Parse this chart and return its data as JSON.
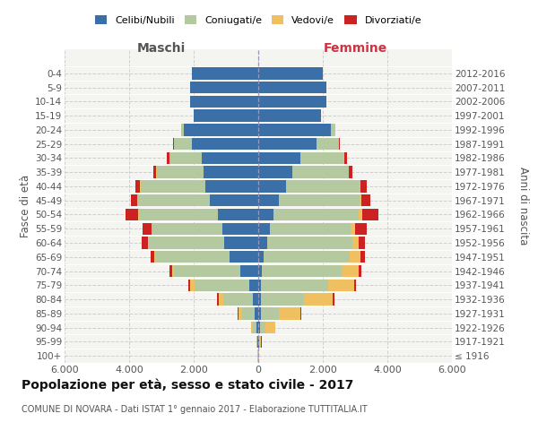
{
  "age_groups": [
    "100+",
    "95-99",
    "90-94",
    "85-89",
    "80-84",
    "75-79",
    "70-74",
    "65-69",
    "60-64",
    "55-59",
    "50-54",
    "45-49",
    "40-44",
    "35-39",
    "30-34",
    "25-29",
    "20-24",
    "15-19",
    "10-14",
    "5-9",
    "0-4"
  ],
  "birth_years": [
    "≤ 1916",
    "1917-1921",
    "1922-1926",
    "1927-1931",
    "1932-1936",
    "1937-1941",
    "1942-1946",
    "1947-1951",
    "1952-1956",
    "1957-1961",
    "1962-1966",
    "1967-1971",
    "1972-1976",
    "1977-1981",
    "1982-1986",
    "1987-1991",
    "1992-1996",
    "1997-2001",
    "2002-2006",
    "2007-2011",
    "2012-2016"
  ],
  "maschi": {
    "celibi": [
      10,
      25,
      60,
      120,
      180,
      280,
      550,
      900,
      1050,
      1100,
      1250,
      1500,
      1650,
      1700,
      1750,
      2050,
      2300,
      2000,
      2100,
      2100,
      2050
    ],
    "coniugati": [
      3,
      25,
      110,
      380,
      900,
      1700,
      2050,
      2300,
      2350,
      2200,
      2450,
      2250,
      2000,
      1450,
      1000,
      550,
      80,
      0,
      0,
      0,
      0
    ],
    "vedovi": [
      2,
      10,
      50,
      110,
      140,
      120,
      75,
      35,
      20,
      15,
      10,
      5,
      5,
      5,
      5,
      5,
      5,
      0,
      0,
      0,
      0
    ],
    "divorziati": [
      2,
      5,
      10,
      20,
      55,
      75,
      75,
      100,
      200,
      270,
      410,
      195,
      145,
      95,
      75,
      25,
      8,
      0,
      0,
      0,
      0
    ]
  },
  "femmine": {
    "nubili": [
      8,
      20,
      60,
      80,
      80,
      80,
      120,
      180,
      280,
      370,
      470,
      650,
      850,
      1050,
      1300,
      1800,
      2250,
      1950,
      2100,
      2100,
      2000
    ],
    "coniugate": [
      3,
      20,
      150,
      550,
      1350,
      2100,
      2450,
      2650,
      2650,
      2500,
      2650,
      2500,
      2300,
      1750,
      1350,
      700,
      120,
      0,
      0,
      0,
      0
    ],
    "vedove": [
      5,
      55,
      320,
      680,
      880,
      780,
      540,
      340,
      190,
      140,
      90,
      45,
      28,
      18,
      12,
      8,
      8,
      0,
      0,
      0,
      0
    ],
    "divorziate": [
      2,
      5,
      10,
      18,
      65,
      75,
      95,
      145,
      195,
      340,
      510,
      290,
      190,
      95,
      75,
      28,
      8,
      0,
      0,
      0,
      0
    ]
  },
  "colors": {
    "celibi": "#3a6fa8",
    "coniugati": "#b5c9a0",
    "vedovi": "#f0c060",
    "divorziati": "#cc2222"
  },
  "xlim": 6000,
  "title": "Popolazione per età, sesso e stato civile - 2017",
  "subtitle": "COMUNE DI NOVARA - Dati ISTAT 1° gennaio 2017 - Elaborazione TUTTITALIA.IT",
  "ylabel_left": "Fasce di età",
  "ylabel_right": "Anni di nascita",
  "xlabel_maschi": "Maschi",
  "xlabel_femmine": "Femmine",
  "bg_color": "#f4f4f0",
  "grid_color": "#cccccc"
}
